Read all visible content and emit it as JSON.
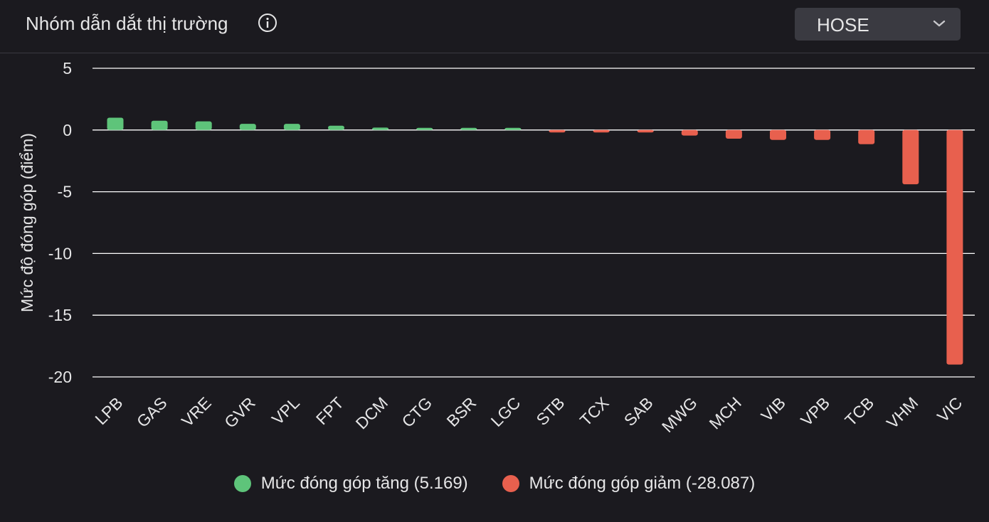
{
  "header": {
    "title": "Nhóm dẫn dắt thị trường",
    "info_icon": "info-icon",
    "exchange_selected": "HOSE",
    "chevron_icon": "chevron-down-icon"
  },
  "colors": {
    "positive": "#5ec47a",
    "negative": "#e8604e",
    "background": "#1b1a1f",
    "grid": "#ffffff"
  },
  "legend": {
    "increase_label": "Mức đóng góp tăng (5.169)",
    "decrease_label": "Mức đóng góp giảm (-28.087)"
  },
  "chart_data": {
    "type": "bar",
    "ylabel": "Mức độ đóng góp (điểm)",
    "ylim": [
      -20,
      5
    ],
    "yticks": [
      5,
      0,
      -5,
      -10,
      -15,
      -20
    ],
    "grid": true,
    "legend_position": "bottom",
    "categories": [
      "LPB",
      "GAS",
      "VRE",
      "GVR",
      "VPL",
      "FPT",
      "DCM",
      "CTG",
      "BSR",
      "LGC",
      "STB",
      "TCX",
      "SAB",
      "MWG",
      "MCH",
      "VIB",
      "VPB",
      "TCB",
      "VHM",
      "VIC"
    ],
    "series": [
      {
        "name": "Mức đóng góp tăng",
        "values": [
          1.0,
          0.75,
          0.7,
          0.5,
          0.5,
          0.35,
          0.2,
          0.12,
          0.12,
          0.12,
          null,
          null,
          null,
          null,
          null,
          null,
          null,
          null,
          null,
          null
        ]
      },
      {
        "name": "Mức đóng góp giảm",
        "values": [
          null,
          null,
          null,
          null,
          null,
          null,
          null,
          null,
          null,
          null,
          -0.2,
          -0.2,
          -0.2,
          -0.45,
          -0.7,
          -0.8,
          -0.8,
          -1.15,
          -4.4,
          -19.0
        ]
      }
    ]
  }
}
